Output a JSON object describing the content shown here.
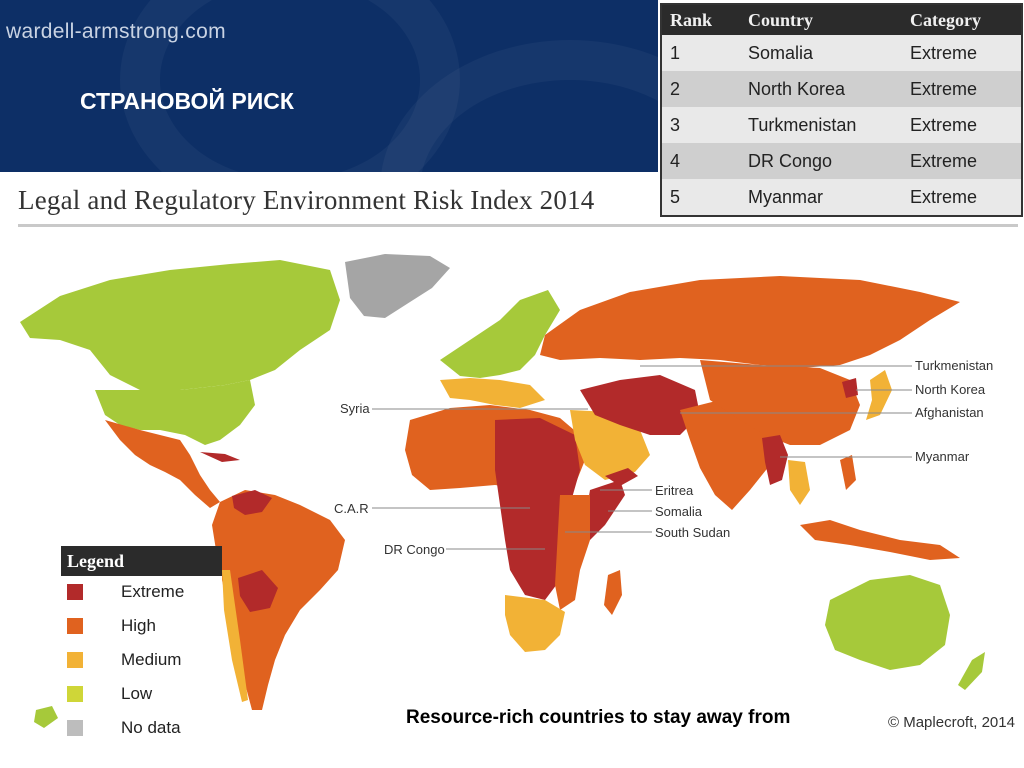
{
  "header": {
    "site_url": "wardell-armstrong.com",
    "slide_title": "СТРАНОВОЙ РИСК"
  },
  "rank_table": {
    "columns": [
      "Rank",
      "Country",
      "Category"
    ],
    "rows": [
      {
        "rank": "1",
        "country": "Somalia",
        "category": "Extreme"
      },
      {
        "rank": "2",
        "country": "North Korea",
        "category": "Extreme"
      },
      {
        "rank": "3",
        "country": "Turkmenistan",
        "category": "Extreme"
      },
      {
        "rank": "4",
        "country": "DR Congo",
        "category": "Extreme"
      },
      {
        "rank": "5",
        "country": "Myanmar",
        "category": "Extreme"
      }
    ]
  },
  "map": {
    "title": "Legal and Regulatory Environment Risk Index 2014",
    "labels": {
      "syria": "Syria",
      "car": "C.A.R",
      "dr_congo": "DR Congo",
      "turkmenistan": "Turkmenistan",
      "north_korea": "North Korea",
      "afghanistan": "Afghanistan",
      "myanmar": "Myanmar",
      "eritrea": "Eritrea",
      "somalia": "Somalia",
      "south_sudan": "South Sudan"
    },
    "colors": {
      "extreme": "#b22a2a",
      "high": "#e0621f",
      "medium": "#f2b236",
      "low": "#a6c93a",
      "no_data": "#a5a5a5"
    },
    "copyright": "© Maplecroft, 2014"
  },
  "legend": {
    "title": "Legend",
    "items": [
      {
        "label": "Extreme",
        "color": "#b22a2a"
      },
      {
        "label": "High",
        "color": "#e0621f"
      },
      {
        "label": "Medium",
        "color": "#f2b236"
      },
      {
        "label": "Low",
        "color": "#cfd638"
      },
      {
        "label": "No data",
        "color": "#bdbdbd"
      }
    ]
  },
  "caption": "Resource-rich countries to stay away from"
}
